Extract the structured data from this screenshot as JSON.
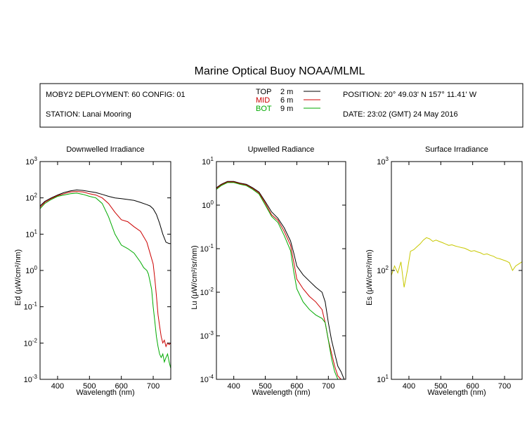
{
  "title": "Marine Optical Buoy NOAA/MLML",
  "header": {
    "deployment": "MOBY2 DEPLOYMENT: 60 CONFIG: 01",
    "station": "STATION: Lanai Mooring",
    "position": "POSITION: 20° 49.03' N   157° 11.41' W",
    "date": "DATE: 23:02 (GMT) 24 May 2016"
  },
  "legend": [
    {
      "label": "TOP",
      "depth": "2  m",
      "color": "#000000"
    },
    {
      "label": "MID",
      "depth": "6  m",
      "color": "#cc0000"
    },
    {
      "label": "BOT",
      "depth": "9  m",
      "color": "#00aa00"
    }
  ],
  "colors": {
    "top": "#000000",
    "mid": "#cc0000",
    "bot": "#00aa00",
    "surface": "#c8c800"
  },
  "chart_data": [
    {
      "type": "line",
      "title": "Downwelled Irradiance",
      "xlabel": "Wavelength (nm)",
      "ylabel": "Ed  (μW/cm²/nm)",
      "xlim": [
        345,
        755
      ],
      "ylim": [
        0.001,
        1000
      ],
      "yscale": "log",
      "xticks": [
        400,
        500,
        600,
        700
      ],
      "yticks": [
        {
          "v": 0.001,
          "base": "10",
          "exp": "-3"
        },
        {
          "v": 0.01,
          "base": "10",
          "exp": "-2"
        },
        {
          "v": 0.1,
          "base": "10",
          "exp": "-1"
        },
        {
          "v": 1,
          "base": "10",
          "exp": "0"
        },
        {
          "v": 10,
          "base": "10",
          "exp": "1"
        },
        {
          "v": 100,
          "base": "10",
          "exp": "2"
        },
        {
          "v": 1000,
          "base": "10",
          "exp": "3"
        }
      ],
      "series": [
        {
          "name": "TOP",
          "color": "#000000",
          "x": [
            345,
            360,
            380,
            400,
            420,
            440,
            460,
            480,
            500,
            520,
            540,
            560,
            580,
            600,
            620,
            640,
            660,
            680,
            690,
            700,
            710,
            720,
            730,
            740,
            750,
            755
          ],
          "y": [
            60,
            80,
            100,
            120,
            140,
            155,
            165,
            160,
            150,
            140,
            125,
            110,
            100,
            95,
            90,
            85,
            75,
            65,
            60,
            50,
            35,
            20,
            10,
            6,
            5.5,
            5.5
          ]
        },
        {
          "name": "MID",
          "color": "#cc0000",
          "x": [
            345,
            360,
            380,
            400,
            420,
            440,
            460,
            480,
            500,
            520,
            540,
            560,
            580,
            600,
            620,
            640,
            660,
            680,
            690,
            700,
            705,
            710,
            715,
            720,
            725,
            730,
            735,
            740,
            745,
            750,
            755
          ],
          "y": [
            55,
            75,
            95,
            115,
            130,
            145,
            150,
            145,
            130,
            120,
            100,
            70,
            40,
            25,
            22,
            16,
            12,
            6,
            3,
            1.5,
            0.6,
            0.2,
            0.06,
            0.03,
            0.015,
            0.01,
            0.012,
            0.008,
            0.01,
            0.009,
            0.01
          ]
        },
        {
          "name": "BOT",
          "color": "#00aa00",
          "x": [
            345,
            360,
            380,
            400,
            420,
            440,
            460,
            480,
            500,
            520,
            540,
            560,
            580,
            600,
            620,
            640,
            660,
            670,
            680,
            685,
            690,
            695,
            700,
            705,
            710,
            715,
            720,
            725,
            730,
            735,
            740,
            745,
            750,
            755
          ],
          "y": [
            50,
            70,
            90,
            110,
            120,
            130,
            135,
            125,
            110,
            100,
            70,
            30,
            10,
            5,
            4,
            3,
            1.7,
            1.2,
            1,
            0.8,
            0.5,
            0.3,
            0.1,
            0.04,
            0.015,
            0.008,
            0.005,
            0.004,
            0.005,
            0.003,
            0.004,
            0.005,
            0.003,
            0.002
          ]
        }
      ]
    },
    {
      "type": "line",
      "title": "Upwelled Radiance",
      "xlabel": "Wavelength (nm)",
      "ylabel": "Lu  (μW/cm²/sr/nm)",
      "xlim": [
        345,
        755
      ],
      "ylim": [
        0.0001,
        10
      ],
      "yscale": "log",
      "xticks": [
        400,
        500,
        600,
        700
      ],
      "yticks": [
        {
          "v": 0.0001,
          "base": "10",
          "exp": "-4"
        },
        {
          "v": 0.001,
          "base": "10",
          "exp": "-3"
        },
        {
          "v": 0.01,
          "base": "10",
          "exp": "-2"
        },
        {
          "v": 0.1,
          "base": "10",
          "exp": "-1"
        },
        {
          "v": 1,
          "base": "10",
          "exp": "0"
        },
        {
          "v": 10,
          "base": "10",
          "exp": "1"
        }
      ],
      "series": [
        {
          "name": "TOP",
          "color": "#000000",
          "x": [
            345,
            360,
            380,
            400,
            420,
            440,
            460,
            480,
            500,
            520,
            540,
            560,
            580,
            590,
            600,
            620,
            640,
            660,
            680,
            690,
            700,
            710,
            720,
            730,
            740,
            750
          ],
          "y": [
            2.5,
            3,
            3.5,
            3.5,
            3.2,
            3,
            2.5,
            2,
            1.2,
            0.7,
            0.5,
            0.3,
            0.15,
            0.08,
            0.04,
            0.025,
            0.018,
            0.013,
            0.01,
            0.006,
            0.002,
            0.0008,
            0.0004,
            0.0002,
            0.00015,
            0.0001
          ]
        },
        {
          "name": "MID",
          "color": "#cc0000",
          "x": [
            345,
            360,
            380,
            400,
            420,
            440,
            460,
            480,
            500,
            520,
            540,
            560,
            580,
            590,
            600,
            620,
            640,
            660,
            680,
            690,
            700,
            710,
            720,
            730,
            740,
            750
          ],
          "y": [
            2.4,
            2.9,
            3.4,
            3.4,
            3.1,
            2.9,
            2.4,
            1.9,
            1.1,
            0.6,
            0.45,
            0.25,
            0.12,
            0.05,
            0.02,
            0.012,
            0.008,
            0.006,
            0.004,
            0.002,
            0.0008,
            0.0004,
            0.0002,
            0.00012,
            0.0001,
            0.0001
          ]
        },
        {
          "name": "BOT",
          "color": "#00aa00",
          "x": [
            345,
            360,
            380,
            400,
            420,
            440,
            460,
            480,
            500,
            520,
            540,
            560,
            580,
            590,
            600,
            620,
            640,
            660,
            680,
            690,
            700,
            710,
            720,
            730,
            740
          ],
          "y": [
            2.3,
            2.8,
            3.3,
            3.3,
            3,
            2.8,
            2.3,
            1.8,
            1,
            0.55,
            0.4,
            0.2,
            0.09,
            0.03,
            0.012,
            0.006,
            0.004,
            0.003,
            0.0025,
            0.002,
            0.0008,
            0.0003,
            0.00015,
            0.0001,
            0.0001
          ]
        }
      ]
    },
    {
      "type": "line",
      "title": "Surface Irradiance",
      "xlabel": "Wavelength (nm)",
      "ylabel": "Es  (μW/cm²/nm)",
      "xlim": [
        345,
        755
      ],
      "ylim": [
        10,
        1000
      ],
      "yscale": "log",
      "xticks": [
        400,
        500,
        600,
        700
      ],
      "yticks": [
        {
          "v": 10,
          "base": "10",
          "exp": "1"
        },
        {
          "v": 100,
          "base": "10",
          "exp": "2"
        },
        {
          "v": 1000,
          "base": "10",
          "exp": "3"
        }
      ],
      "series": [
        {
          "name": "Es",
          "color": "#c8c800",
          "x": [
            345,
            355,
            365,
            375,
            385,
            395,
            405,
            415,
            425,
            435,
            445,
            455,
            465,
            475,
            485,
            495,
            505,
            515,
            525,
            535,
            545,
            555,
            565,
            575,
            585,
            595,
            605,
            615,
            625,
            635,
            645,
            655,
            665,
            675,
            685,
            695,
            705,
            715,
            725,
            735,
            745,
            755
          ],
          "y": [
            90,
            110,
            95,
            120,
            70,
            100,
            150,
            155,
            165,
            175,
            190,
            200,
            195,
            185,
            190,
            185,
            180,
            175,
            170,
            172,
            168,
            165,
            162,
            160,
            155,
            150,
            152,
            148,
            145,
            140,
            142,
            138,
            135,
            130,
            128,
            125,
            122,
            118,
            100,
            110,
            115,
            120
          ]
        }
      ]
    }
  ]
}
